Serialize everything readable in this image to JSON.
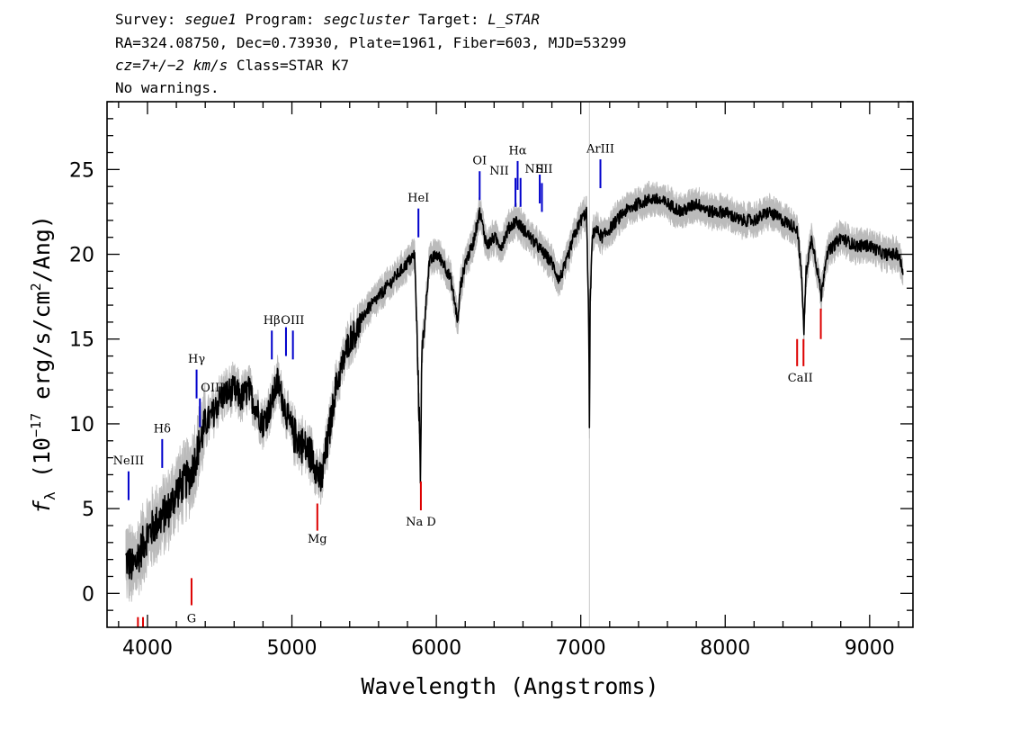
{
  "header": {
    "line1": [
      {
        "t": "Survey: ",
        "it": false
      },
      {
        "t": "segue1",
        "it": true
      },
      {
        "t": " Program: ",
        "it": false
      },
      {
        "t": "segcluster",
        "it": true
      },
      {
        "t": " Target: ",
        "it": false
      },
      {
        "t": "L_STAR",
        "it": true
      }
    ],
    "line2": "RA=324.08750, Dec=0.73930, Plate=1961, Fiber=603, MJD=53299",
    "line3": [
      {
        "t": "cz=7+/−2 km/s",
        "it": true
      },
      {
        "t": " Class=STAR K7",
        "it": false
      }
    ],
    "line4": "No warnings."
  },
  "chart_data": {
    "type": "line",
    "xlabel": "Wavelength (Angstroms)",
    "ylabel": "f_λ (10⁻¹⁷ erg/s/cm²/Ang)",
    "xlim": [
      3720,
      9300
    ],
    "ylim": [
      -2,
      29
    ],
    "xticks": [
      4000,
      5000,
      6000,
      7000,
      8000,
      9000
    ],
    "yticks": [
      0,
      5,
      10,
      15,
      20,
      25
    ],
    "colors": {
      "spectrum": "#000000",
      "error": "#bbbbbb",
      "emission": "#0000cc",
      "absorption": "#dd0000",
      "marker": "#c8c8c8"
    },
    "marker_line_x": 7060,
    "spectrum": {
      "x": [
        3850,
        3900,
        3950,
        4000,
        4050,
        4100,
        4150,
        4200,
        4250,
        4300,
        4350,
        4400,
        4450,
        4500,
        4550,
        4600,
        4650,
        4700,
        4750,
        4800,
        4850,
        4900,
        4950,
        5000,
        5050,
        5100,
        5150,
        5200,
        5250,
        5300,
        5350,
        5400,
        5450,
        5500,
        5550,
        5600,
        5650,
        5700,
        5750,
        5800,
        5850,
        5870,
        5890,
        5900,
        5950,
        6000,
        6050,
        6100,
        6150,
        6165,
        6200,
        6250,
        6300,
        6350,
        6400,
        6450,
        6500,
        6550,
        6600,
        6650,
        6700,
        6750,
        6800,
        6850,
        6900,
        6950,
        7000,
        7040,
        7055,
        7060,
        7065,
        7080,
        7100,
        7150,
        7200,
        7250,
        7300,
        7400,
        7500,
        7600,
        7700,
        7800,
        7900,
        8000,
        8100,
        8200,
        8300,
        8400,
        8500,
        8530,
        8545,
        8560,
        8600,
        8650,
        8665,
        8700,
        8800,
        8900,
        9000,
        9100,
        9200,
        9230
      ],
      "y": [
        2.0,
        1.5,
        2.5,
        3.5,
        4.0,
        4.5,
        5.0,
        6.0,
        6.5,
        7.0,
        8.5,
        10.0,
        10.5,
        11.5,
        11.8,
        12.0,
        11.5,
        12.0,
        11.0,
        10.0,
        11.0,
        12.5,
        11.0,
        9.5,
        9.0,
        8.5,
        8.0,
        6.5,
        9.0,
        12.0,
        13.5,
        15.0,
        15.5,
        16.5,
        17.0,
        17.5,
        18.0,
        18.5,
        19.0,
        19.5,
        20.0,
        14.0,
        7.5,
        14.0,
        19.5,
        20.0,
        19.5,
        18.5,
        16.0,
        18.0,
        19.5,
        20.5,
        22.5,
        20.5,
        21.0,
        20.5,
        21.5,
        22.0,
        21.5,
        21.0,
        20.5,
        20.0,
        19.5,
        18.5,
        19.5,
        21.0,
        22.0,
        22.5,
        16.0,
        10.0,
        17.0,
        21.0,
        21.5,
        21.0,
        21.5,
        22.0,
        22.5,
        23.0,
        23.3,
        23.0,
        22.5,
        23.0,
        22.5,
        22.5,
        22.0,
        22.0,
        22.5,
        22.0,
        21.5,
        18.5,
        15.5,
        19.0,
        21.0,
        18.5,
        17.5,
        20.0,
        21.0,
        20.5,
        20.5,
        20.0,
        20.0,
        19.0
      ]
    },
    "emission_lines": [
      {
        "label": "NeIII",
        "x": 3869,
        "y0": 5.5,
        "y1": 7.2,
        "label_x": 3869,
        "label_y": 7.6
      },
      {
        "label": "Hδ",
        "x": 4102,
        "y0": 7.4,
        "y1": 9.1,
        "label_x": 4102,
        "label_y": 9.5
      },
      {
        "label": "Hγ",
        "x": 4340,
        "y0": 11.5,
        "y1": 13.2,
        "label_x": 4340,
        "label_y": 13.6
      },
      {
        "label": "OIII",
        "x": 4363,
        "y0": 9.8,
        "y1": 11.5,
        "label_x": 4450,
        "label_y": 11.9
      },
      {
        "label": "Hβ",
        "x": 4861,
        "y0": 13.8,
        "y1": 15.5,
        "label_x": 4861,
        "label_y": 15.9
      },
      {
        "label": "OIII",
        "x": 4959,
        "y0": 14.0,
        "y1": 15.7,
        "label_x": 5005,
        "label_y": 15.9
      },
      {
        "label": "OIII",
        "x": 5007,
        "y0": 13.8,
        "y1": 15.5,
        "label_x": null,
        "label_y": null
      },
      {
        "label": "HeI",
        "x": 5876,
        "y0": 21.0,
        "y1": 22.7,
        "label_x": 5876,
        "label_y": 23.1
      },
      {
        "label": "OI",
        "x": 6300,
        "y0": 23.2,
        "y1": 24.9,
        "label_x": 6300,
        "label_y": 25.3
      },
      {
        "label": "NII",
        "x": 6548,
        "y0": 22.8,
        "y1": 24.5,
        "label_x": 6435,
        "label_y": 24.7
      },
      {
        "label": "Hα",
        "x": 6563,
        "y0": 23.8,
        "y1": 25.5,
        "label_x": 6563,
        "label_y": 25.9
      },
      {
        "label": "NII",
        "x": 6583,
        "y0": 22.8,
        "y1": 24.5,
        "label_x": null,
        "label_y": null
      },
      {
        "label": "NII",
        "x": 6716,
        "y0": 23.0,
        "y1": 24.7,
        "label_x": 6680,
        "label_y": 24.8
      },
      {
        "label": "SII",
        "x": 6731,
        "y0": 22.5,
        "y1": 24.2,
        "label_x": 6746,
        "label_y": 24.8
      },
      {
        "label": "ArIII",
        "x": 7136,
        "y0": 23.9,
        "y1": 25.6,
        "label_x": 7136,
        "label_y": 26.0
      }
    ],
    "absorption_lines": [
      {
        "label": "",
        "x": 3934,
        "y0": -1.4,
        "y1": -2.0
      },
      {
        "label": "",
        "x": 3969,
        "y0": -1.4,
        "y1": -2.0
      },
      {
        "label": "G",
        "x": 4305,
        "y0": -0.7,
        "y1": 0.9,
        "label_x": 4305,
        "label_y": -1.7
      },
      {
        "label": "Mg",
        "x": 5176,
        "y0": 3.7,
        "y1": 5.3,
        "label_x": 5176,
        "label_y": 3.0
      },
      {
        "label": "Na D",
        "x": 5893,
        "y0": 4.9,
        "y1": 6.6,
        "label_x": 5893,
        "label_y": 4.0
      },
      {
        "label": "CaII",
        "x": 8498,
        "y0": 13.4,
        "y1": 15.0,
        "label_x": 8520,
        "label_y": 12.5
      },
      {
        "label": "",
        "x": 8542,
        "y0": 13.4,
        "y1": 15.0
      },
      {
        "label": "",
        "x": 8662,
        "y0": 15.0,
        "y1": 16.8
      }
    ]
  }
}
